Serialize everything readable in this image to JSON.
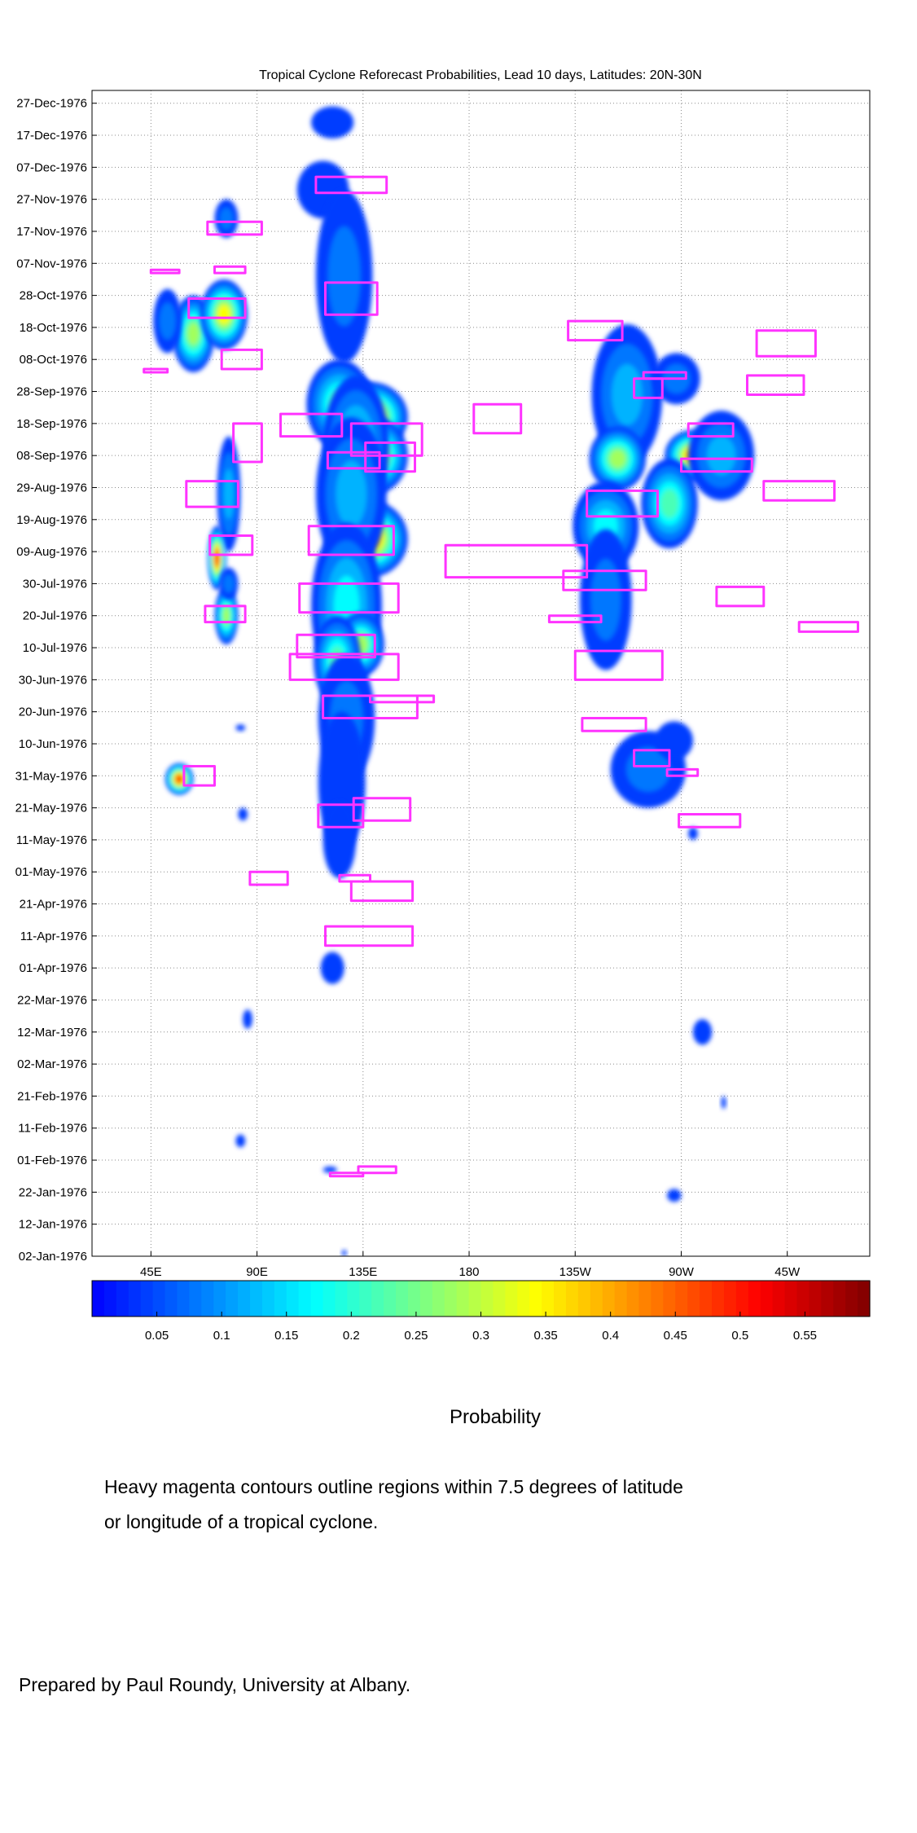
{
  "chart_data": {
    "type": "heatmap",
    "title": "Tropical Cyclone Reforecast Probabilities, Lead 10 days, Latitudes: 20N-30N",
    "xlabel": "",
    "ylabel": "",
    "colorbar_label": "Probability",
    "x_ticks": [
      {
        "lon": 45,
        "label": "45E"
      },
      {
        "lon": 90,
        "label": "90E"
      },
      {
        "lon": 135,
        "label": "135E"
      },
      {
        "lon": 180,
        "label": "180"
      },
      {
        "lon": 225,
        "label": "135W"
      },
      {
        "lon": 270,
        "label": "90W"
      },
      {
        "lon": 315,
        "label": "45W"
      }
    ],
    "xlim": [
      20,
      350
    ],
    "y_ticks": [
      "02-Jan-1976",
      "12-Jan-1976",
      "22-Jan-1976",
      "01-Feb-1976",
      "11-Feb-1976",
      "21-Feb-1976",
      "02-Mar-1976",
      "12-Mar-1976",
      "22-Mar-1976",
      "01-Apr-1976",
      "11-Apr-1976",
      "21-Apr-1976",
      "01-May-1976",
      "11-May-1976",
      "21-May-1976",
      "31-May-1976",
      "10-Jun-1976",
      "20-Jun-1976",
      "30-Jun-1976",
      "10-Jul-1976",
      "20-Jul-1976",
      "30-Jul-1976",
      "09-Aug-1976",
      "19-Aug-1976",
      "29-Aug-1976",
      "08-Sep-1976",
      "18-Sep-1976",
      "28-Sep-1976",
      "08-Oct-1976",
      "18-Oct-1976",
      "28-Oct-1976",
      "07-Nov-1976",
      "17-Nov-1976",
      "27-Nov-1976",
      "07-Dec-1976",
      "17-Dec-1976",
      "27-Dec-1976"
    ],
    "ylim": [
      "02-Jan-1976",
      "31-Dec-1976"
    ],
    "grid": true,
    "colorbar": {
      "range": [
        0,
        0.6
      ],
      "ticks": [
        0.05,
        0.1,
        0.15,
        0.2,
        0.25,
        0.3,
        0.35,
        0.4,
        0.45,
        0.5,
        0.55
      ],
      "tick_labels": [
        "0.05",
        "0.1",
        "0.15",
        "0.2",
        "0.25",
        "0.3",
        "0.35",
        "0.4",
        "0.45",
        "0.5",
        "0.55"
      ]
    },
    "probability_blobs": [
      {
        "lon": 122,
        "day": 356,
        "w": 9,
        "h": 5,
        "p": 0.05
      },
      {
        "lon": 118,
        "day": 335,
        "w": 11,
        "h": 9,
        "p": 0.06
      },
      {
        "lon": 77,
        "day": 326,
        "w": 5,
        "h": 6,
        "p": 0.08
      },
      {
        "lon": 63,
        "day": 290,
        "w": 9,
        "h": 12,
        "p": 0.28
      },
      {
        "lon": 76,
        "day": 296,
        "w": 10,
        "h": 11,
        "p": 0.34
      },
      {
        "lon": 52,
        "day": 294,
        "w": 6,
        "h": 10,
        "p": 0.09
      },
      {
        "lon": 78,
        "day": 240,
        "w": 5,
        "h": 18,
        "p": 0.14
      },
      {
        "lon": 73,
        "day": 220,
        "w": 4,
        "h": 10,
        "p": 0.5
      },
      {
        "lon": 77,
        "day": 202,
        "w": 5,
        "h": 9,
        "p": 0.3
      },
      {
        "lon": 78,
        "day": 212,
        "w": 4,
        "h": 5,
        "p": 0.08
      },
      {
        "lon": 127,
        "day": 308,
        "w": 12,
        "h": 27,
        "p": 0.08
      },
      {
        "lon": 125,
        "day": 268,
        "w": 14,
        "h": 14,
        "p": 0.24
      },
      {
        "lon": 138,
        "day": 264,
        "w": 16,
        "h": 11,
        "p": 0.45
      },
      {
        "lon": 140,
        "day": 252,
        "w": 14,
        "h": 12,
        "p": 0.38
      },
      {
        "lon": 132,
        "day": 255,
        "w": 14,
        "h": 22,
        "p": 0.18
      },
      {
        "lon": 138,
        "day": 226,
        "w": 16,
        "h": 12,
        "p": 0.42
      },
      {
        "lon": 130,
        "day": 240,
        "w": 15,
        "h": 24,
        "p": 0.16
      },
      {
        "lon": 128,
        "day": 205,
        "w": 15,
        "h": 26,
        "p": 0.2
      },
      {
        "lon": 134,
        "day": 193,
        "w": 10,
        "h": 10,
        "p": 0.3
      },
      {
        "lon": 124,
        "day": 188,
        "w": 10,
        "h": 14,
        "p": 0.22
      },
      {
        "lon": 128,
        "day": 170,
        "w": 12,
        "h": 20,
        "p": 0.1
      },
      {
        "lon": 126,
        "day": 150,
        "w": 10,
        "h": 22,
        "p": 0.07
      },
      {
        "lon": 57,
        "day": 151,
        "w": 6,
        "h": 5,
        "p": 0.5
      },
      {
        "lon": 125,
        "day": 132,
        "w": 7,
        "h": 12,
        "p": 0.06
      },
      {
        "lon": 84,
        "day": 140,
        "w": 2,
        "h": 2,
        "p": 0.05
      },
      {
        "lon": 83,
        "day": 167,
        "w": 2,
        "h": 1,
        "p": 0.05
      },
      {
        "lon": 122,
        "day": 92,
        "w": 5,
        "h": 5,
        "p": 0.06
      },
      {
        "lon": 86,
        "day": 76,
        "w": 2,
        "h": 3,
        "p": 0.05
      },
      {
        "lon": 83,
        "day": 38,
        "w": 2,
        "h": 2,
        "p": 0.05
      },
      {
        "lon": 121,
        "day": 29,
        "w": 3,
        "h": 1,
        "p": 0.05
      },
      {
        "lon": 127,
        "day": 3,
        "w": 1,
        "h": 1,
        "p": 0.05
      },
      {
        "lon": 247,
        "day": 271,
        "w": 15,
        "h": 22,
        "p": 0.14
      },
      {
        "lon": 243,
        "day": 251,
        "w": 12,
        "h": 10,
        "p": 0.3
      },
      {
        "lon": 275,
        "day": 252,
        "w": 12,
        "h": 8,
        "p": 0.4
      },
      {
        "lon": 287,
        "day": 252,
        "w": 14,
        "h": 14,
        "p": 0.16
      },
      {
        "lon": 265,
        "day": 237,
        "w": 12,
        "h": 14,
        "p": 0.22
      },
      {
        "lon": 238,
        "day": 230,
        "w": 14,
        "h": 14,
        "p": 0.18
      },
      {
        "lon": 268,
        "day": 276,
        "w": 10,
        "h": 8,
        "p": 0.08
      },
      {
        "lon": 238,
        "day": 207,
        "w": 11,
        "h": 22,
        "p": 0.1
      },
      {
        "lon": 256,
        "day": 154,
        "w": 16,
        "h": 12,
        "p": 0.09
      },
      {
        "lon": 267,
        "day": 163,
        "w": 8,
        "h": 6,
        "p": 0.07
      },
      {
        "lon": 275,
        "day": 134,
        "w": 2,
        "h": 2,
        "p": 0.05
      },
      {
        "lon": 279,
        "day": 72,
        "w": 4,
        "h": 4,
        "p": 0.05
      },
      {
        "lon": 288,
        "day": 50,
        "w": 1,
        "h": 2,
        "p": 0.05
      },
      {
        "lon": 267,
        "day": 21,
        "w": 3,
        "h": 2,
        "p": 0.05
      }
    ],
    "magenta_contours": [
      {
        "lon": [
          115,
          145,
          145,
          115
        ],
        "day": [
          339,
          339,
          334,
          334
        ]
      },
      {
        "lon": [
          69,
          92,
          92,
          69
        ],
        "day": [
          325,
          325,
          321,
          321
        ]
      },
      {
        "lon": [
          45,
          57,
          57,
          45
        ],
        "day": [
          310,
          310,
          309,
          309
        ]
      },
      {
        "lon": [
          72,
          85,
          85,
          72
        ],
        "day": [
          311,
          311,
          309,
          309
        ]
      },
      {
        "lon": [
          119,
          141,
          141,
          119
        ],
        "day": [
          306,
          306,
          296,
          296
        ]
      },
      {
        "lon": [
          61,
          85,
          85,
          61
        ],
        "day": [
          301,
          301,
          295,
          295
        ]
      },
      {
        "lon": [
          75,
          92,
          92,
          75
        ],
        "day": [
          285,
          285,
          279,
          279
        ]
      },
      {
        "lon": [
          42,
          52,
          52,
          42
        ],
        "day": [
          279,
          279,
          278,
          278
        ]
      },
      {
        "lon": [
          222,
          245,
          245,
          222
        ],
        "day": [
          294,
          294,
          288,
          288
        ]
      },
      {
        "lon": [
          302,
          327,
          327,
          302
        ],
        "day": [
          291,
          291,
          283,
          283
        ]
      },
      {
        "lon": [
          100,
          126,
          126,
          100
        ],
        "day": [
          265,
          265,
          258,
          258
        ]
      },
      {
        "lon": [
          130,
          160,
          160,
          130
        ],
        "day": [
          262,
          262,
          252,
          252
        ]
      },
      {
        "lon": [
          120,
          142,
          142,
          120
        ],
        "day": [
          253,
          253,
          248,
          248
        ]
      },
      {
        "lon": [
          136,
          157,
          157,
          136
        ],
        "day": [
          256,
          256,
          247,
          247
        ]
      },
      {
        "lon": [
          182,
          202,
          202,
          182
        ],
        "day": [
          268,
          268,
          259,
          259
        ]
      },
      {
        "lon": [
          250,
          262,
          262,
          250
        ],
        "day": [
          276,
          276,
          270,
          270
        ]
      },
      {
        "lon": [
          254,
          272,
          272,
          254
        ],
        "day": [
          278,
          278,
          276,
          276
        ]
      },
      {
        "lon": [
          298,
          322,
          322,
          298
        ],
        "day": [
          277,
          277,
          271,
          271
        ]
      },
      {
        "lon": [
          60,
          82,
          82,
          60
        ],
        "day": [
          244,
          244,
          236,
          236
        ]
      },
      {
        "lon": [
          80,
          92,
          92,
          80
        ],
        "day": [
          262,
          262,
          250,
          250
        ]
      },
      {
        "lon": [
          230,
          260,
          260,
          230
        ],
        "day": [
          241,
          241,
          233,
          233
        ]
      },
      {
        "lon": [
          305,
          335,
          335,
          305
        ],
        "day": [
          244,
          244,
          238,
          238
        ]
      },
      {
        "lon": [
          270,
          300,
          300,
          270
        ],
        "day": [
          251,
          251,
          247,
          247
        ]
      },
      {
        "lon": [
          273,
          292,
          292,
          273
        ],
        "day": [
          262,
          262,
          258,
          258
        ]
      },
      {
        "lon": [
          112,
          148,
          148,
          112
        ],
        "day": [
          230,
          230,
          221,
          221
        ]
      },
      {
        "lon": [
          70,
          88,
          88,
          70
        ],
        "day": [
          227,
          227,
          221,
          221
        ]
      },
      {
        "lon": [
          170,
          230,
          230,
          170
        ],
        "day": [
          224,
          224,
          214,
          214
        ]
      },
      {
        "lon": [
          220,
          255,
          255,
          220
        ],
        "day": [
          216,
          216,
          210,
          210
        ]
      },
      {
        "lon": [
          285,
          305,
          305,
          285
        ],
        "day": [
          211,
          211,
          205,
          205
        ]
      },
      {
        "lon": [
          108,
          150,
          150,
          108
        ],
        "day": [
          212,
          212,
          203,
          203
        ]
      },
      {
        "lon": [
          68,
          85,
          85,
          68
        ],
        "day": [
          205,
          205,
          200,
          200
        ]
      },
      {
        "lon": [
          214,
          236,
          236,
          214
        ],
        "day": [
          202,
          202,
          200,
          200
        ]
      },
      {
        "lon": [
          320,
          345,
          345,
          320
        ],
        "day": [
          200,
          200,
          197,
          197
        ]
      },
      {
        "lon": [
          104,
          150,
          150,
          104
        ],
        "day": [
          190,
          190,
          182,
          182
        ]
      },
      {
        "lon": [
          107,
          140,
          140,
          107
        ],
        "day": [
          196,
          196,
          189,
          189
        ]
      },
      {
        "lon": [
          225,
          262,
          262,
          225
        ],
        "day": [
          191,
          191,
          182,
          182
        ]
      },
      {
        "lon": [
          118,
          158,
          158,
          118
        ],
        "day": [
          177,
          177,
          170,
          170
        ]
      },
      {
        "lon": [
          138,
          165,
          165,
          138
        ],
        "day": [
          177,
          177,
          175,
          175
        ]
      },
      {
        "lon": [
          228,
          255,
          255,
          228
        ],
        "day": [
          170,
          170,
          166,
          166
        ]
      },
      {
        "lon": [
          250,
          265,
          265,
          250
        ],
        "day": [
          160,
          160,
          155,
          155
        ]
      },
      {
        "lon": [
          59,
          72,
          72,
          59
        ],
        "day": [
          155,
          155,
          149,
          149
        ]
      },
      {
        "lon": [
          116,
          135,
          135,
          116
        ],
        "day": [
          143,
          143,
          136,
          136
        ]
      },
      {
        "lon": [
          131,
          155,
          155,
          131
        ],
        "day": [
          145,
          145,
          138,
          138
        ]
      },
      {
        "lon": [
          269,
          295,
          295,
          269
        ],
        "day": [
          140,
          140,
          136,
          136
        ]
      },
      {
        "lon": [
          264,
          277,
          277,
          264
        ],
        "day": [
          154,
          154,
          152,
          152
        ]
      },
      {
        "lon": [
          87,
          103,
          103,
          87
        ],
        "day": [
          122,
          122,
          118,
          118
        ]
      },
      {
        "lon": [
          125,
          138,
          138,
          125
        ],
        "day": [
          121,
          121,
          119,
          119
        ]
      },
      {
        "lon": [
          130,
          156,
          156,
          130
        ],
        "day": [
          119,
          119,
          113,
          113
        ]
      },
      {
        "lon": [
          119,
          156,
          156,
          119
        ],
        "day": [
          105,
          105,
          99,
          99
        ]
      },
      {
        "lon": [
          121,
          135,
          135,
          121
        ],
        "day": [
          28,
          28,
          27,
          27
        ]
      },
      {
        "lon": [
          133,
          149,
          149,
          133
        ],
        "day": [
          30,
          30,
          28,
          28
        ]
      }
    ]
  },
  "captions": {
    "colorbar_label": "Probability",
    "note_line1": "Heavy magenta contours outline regions within 7.5 degrees of latitude",
    "note_line2": "or longitude of a tropical cyclone.",
    "credit": "Prepared by Paul Roundy, University at Albany."
  },
  "colors": {
    "contour": "#ff33ff",
    "grid": "#8c8c8c",
    "colormap": "jet"
  }
}
